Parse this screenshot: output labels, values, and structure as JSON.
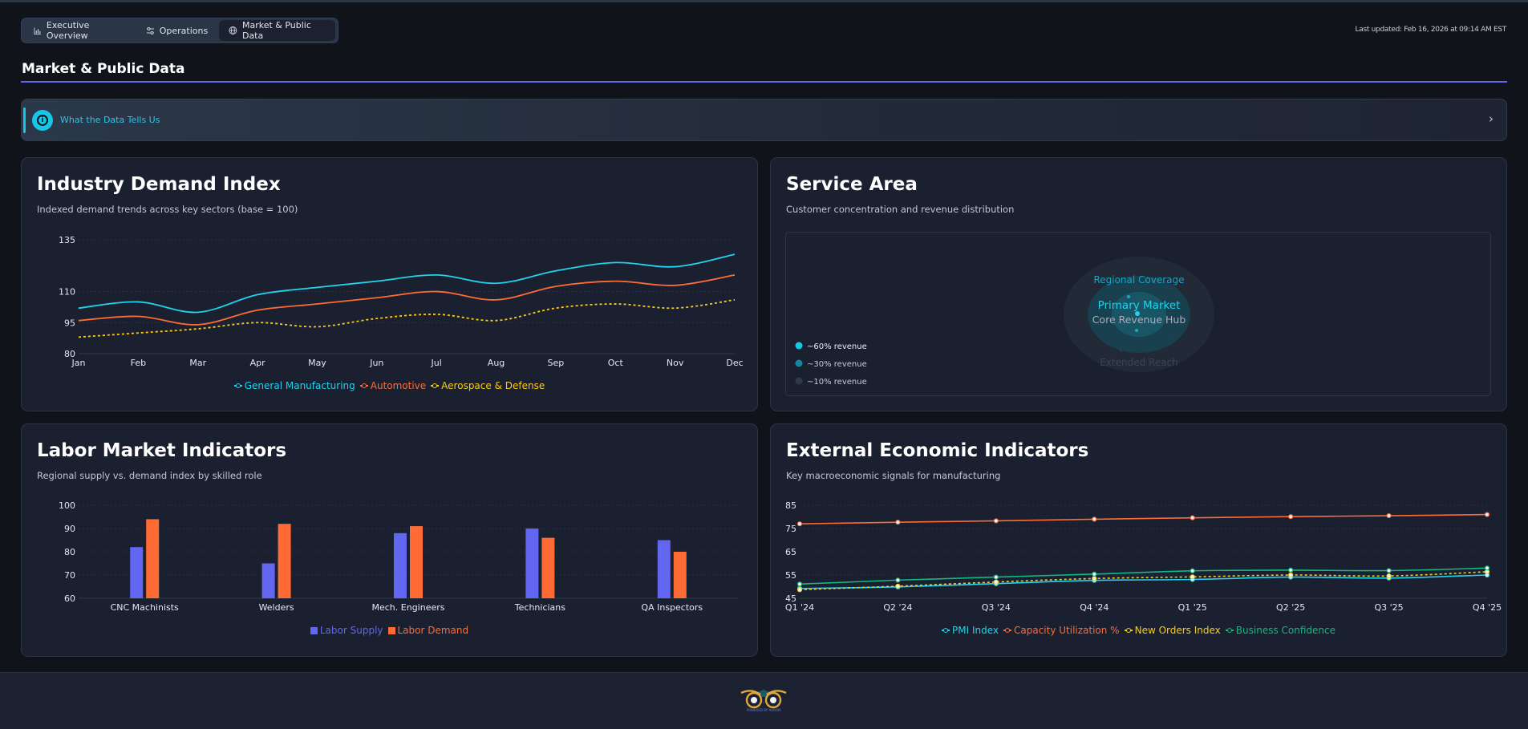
{
  "tabs": [
    {
      "label": "Executive Overview",
      "icon": "bar-chart-icon",
      "active": false
    },
    {
      "label": "Operations",
      "icon": "sliders-icon",
      "active": false
    },
    {
      "label": "Market & Public Data",
      "icon": "globe-icon",
      "active": true
    }
  ],
  "last_updated": "Last updated: Feb 16, 2026 at 09:14 AM EST",
  "page_title": "Market & Public Data",
  "insight": {
    "label": "What the Data Tells Us",
    "icon": "info-icon"
  },
  "colors": {
    "accent": "#6366f1",
    "cyan": "#22d3ee",
    "orange": "#ff6b35",
    "yellow": "#facc15",
    "green": "#10b981",
    "indigo": "#6366f1"
  },
  "cards": {
    "industry": {
      "title": "Industry Demand Index",
      "subtitle": "Indexed demand trends across key sectors (base = 100)"
    },
    "service": {
      "title": "Service Area",
      "subtitle": "Customer concentration and revenue distribution",
      "rings": {
        "outer": "Extended Reach",
        "middle": "Regional Coverage",
        "inner_title": "Primary Market",
        "inner_sub": "Core Revenue Hub"
      },
      "legend": [
        "~60% revenue",
        "~30% revenue",
        "~10% revenue"
      ]
    },
    "labor": {
      "title": "Labor Market Indicators",
      "subtitle": "Regional supply vs. demand index by skilled role"
    },
    "external": {
      "title": "External Economic Indicators",
      "subtitle": "Key macroeconomic signals for manufacturing"
    }
  },
  "chart_data": [
    {
      "type": "line",
      "categories": [
        "Jan",
        "Feb",
        "Mar",
        "Apr",
        "May",
        "Jun",
        "Jul",
        "Aug",
        "Sep",
        "Oct",
        "Nov",
        "Dec"
      ],
      "ylim": [
        80,
        135
      ],
      "yticks": [
        80,
        95,
        110,
        135
      ],
      "grid": true,
      "legend": "bottom",
      "series": [
        {
          "name": "General Manufacturing",
          "color": "#22d3ee",
          "values": [
            102,
            105,
            100,
            108.5,
            112,
            115,
            118,
            114,
            120,
            124,
            122,
            128
          ]
        },
        {
          "name": "Automotive",
          "color": "#ff6b35",
          "values": [
            96,
            98,
            94,
            101,
            104,
            107,
            110,
            106,
            112.5,
            115,
            113,
            118
          ]
        },
        {
          "name": "Aerospace & Defense",
          "color": "#facc15",
          "dashed": true,
          "values": [
            88,
            90,
            92,
            95,
            93,
            97,
            99,
            96,
            102,
            104,
            102,
            106
          ]
        }
      ]
    },
    {
      "type": "bar",
      "categories": [
        "CNC Machinists",
        "Welders",
        "Mech. Engineers",
        "Technicians",
        "QA Inspectors"
      ],
      "ylim": [
        60,
        100
      ],
      "yticks": [
        60,
        70,
        80,
        90,
        100
      ],
      "grid": true,
      "legend": "bottom",
      "series": [
        {
          "name": "Labor Supply",
          "color": "#6366f1",
          "values": [
            82,
            75,
            88,
            90,
            85
          ]
        },
        {
          "name": "Labor Demand",
          "color": "#ff6b35",
          "values": [
            94,
            92,
            91,
            86,
            80
          ]
        }
      ]
    },
    {
      "type": "line",
      "categories": [
        "Q1 '24",
        "Q2 '24",
        "Q3 '24",
        "Q4 '24",
        "Q1 '25",
        "Q2 '25",
        "Q3 '25",
        "Q4 '25"
      ],
      "ylim": [
        45,
        85
      ],
      "yticks": [
        45,
        55,
        65,
        75,
        85
      ],
      "grid": true,
      "legend": "bottom",
      "series": [
        {
          "name": "PMI Index",
          "color": "#22d3ee",
          "values": [
            49.2,
            49.9,
            51.3,
            52.7,
            53.1,
            54.1,
            53.7,
            55
          ]
        },
        {
          "name": "Capacity Utilization %",
          "color": "#ff6b35",
          "values": [
            77,
            77.7,
            78.3,
            79,
            79.6,
            80.1,
            80.5,
            81
          ]
        },
        {
          "name": "New Orders Index",
          "color": "#facc15",
          "dashed": true,
          "values": [
            48.7,
            50.2,
            52,
            53.5,
            54.2,
            55,
            54.6,
            56.4
          ]
        },
        {
          "name": "Business Confidence",
          "color": "#10b981",
          "values": [
            51.1,
            52.8,
            54.1,
            55.4,
            56.8,
            57.1,
            56.9,
            58
          ]
        }
      ]
    }
  ],
  "footer": {
    "logo_text": "POWERED BY AUROM"
  }
}
